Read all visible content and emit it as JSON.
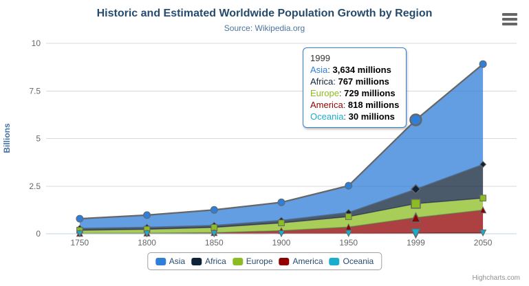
{
  "chart_data": {
    "type": "area",
    "stacking": "normal",
    "title": "Historic and Estimated Worldwide Population Growth by Region",
    "subtitle": "Source: Wikipedia.org",
    "categories": [
      "1750",
      "1800",
      "1850",
      "1900",
      "1950",
      "1999",
      "2050"
    ],
    "xlabel": "",
    "ylabel": "Billions",
    "ylim": [
      0,
      10
    ],
    "yticks": [
      0,
      2.5,
      5,
      7.5,
      10
    ],
    "ytick_labels": [
      "0",
      "2.5",
      "5",
      "7.5",
      "10"
    ],
    "values_unit": "millions",
    "grid": true,
    "legend_position": "bottom",
    "line_color": "#666666",
    "axis_line_color": "#c0d0e0",
    "grid_line_color": "#d8d8d8",
    "series": [
      {
        "name": "Asia",
        "color": "#2f7ed8",
        "marker": "circle",
        "values": [
          502,
          635,
          809,
          947,
          1402,
          3634,
          5268
        ]
      },
      {
        "name": "Africa",
        "color": "#0d233a",
        "marker": "diamond",
        "values": [
          106,
          107,
          111,
          133,
          221,
          767,
          1766
        ]
      },
      {
        "name": "Europe",
        "color": "#8bbc21",
        "marker": "square",
        "values": [
          163,
          203,
          276,
          408,
          547,
          729,
          628
        ]
      },
      {
        "name": "America",
        "color": "#910000",
        "marker": "triangle",
        "values": [
          18,
          31,
          54,
          156,
          339,
          818,
          1201
        ]
      },
      {
        "name": "Oceania",
        "color": "#1aadce",
        "marker": "triangle-down",
        "values": [
          2,
          2,
          2,
          6,
          13,
          30,
          46
        ]
      }
    ]
  },
  "tooltip": {
    "header": "1999",
    "border_color": "#2f7ed8",
    "rows": [
      {
        "name": "Asia",
        "color": "#2f7ed8",
        "value": "3,634 millions"
      },
      {
        "name": "Africa",
        "color": "#0d233a",
        "value": "767 millions"
      },
      {
        "name": "Europe",
        "color": "#8bbc21",
        "value": "729 millions"
      },
      {
        "name": "America",
        "color": "#910000",
        "value": "818 millions"
      },
      {
        "name": "Oceania",
        "color": "#1aadce",
        "value": "30 millions"
      }
    ]
  },
  "export_menu": {
    "icon": "hamburger-menu-icon"
  },
  "credits": {
    "label": "Highcharts.com"
  }
}
